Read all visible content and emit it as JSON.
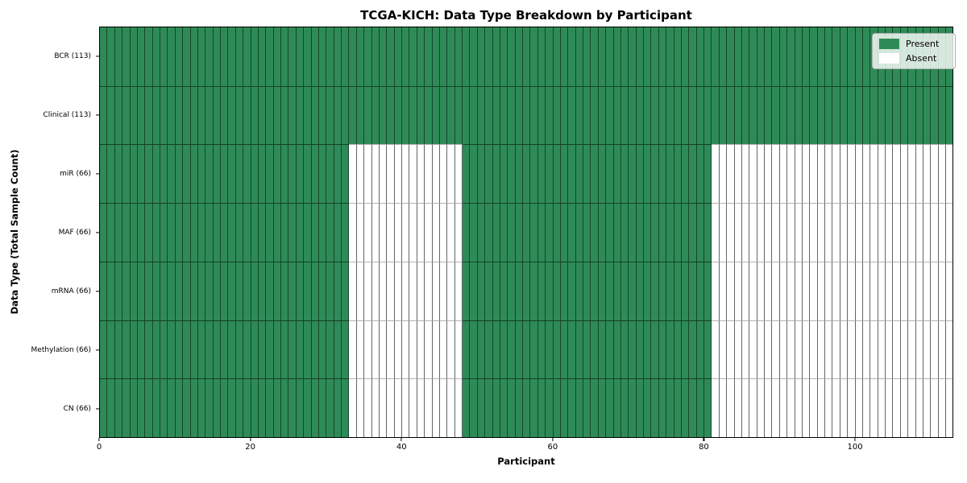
{
  "chart_data": {
    "type": "heatmap",
    "title": "TCGA-KICH: Data Type Breakdown by Participant",
    "xlabel": "Participant",
    "ylabel": "Data Type (Total Sample Count)",
    "n_participants": 113,
    "xlim": [
      0,
      113
    ],
    "x_ticks": [
      0,
      20,
      40,
      60,
      80,
      100
    ],
    "colors": {
      "present": "#2e8b57",
      "absent": "#ffffff"
    },
    "legend": {
      "position": "upper right",
      "entries": [
        {
          "label": "Present",
          "color": "#2e8b57"
        },
        {
          "label": "Absent",
          "color": "#ffffff"
        }
      ]
    },
    "rows": [
      {
        "label": "BCR (113)",
        "total": 113,
        "present_ranges": [
          [
            0,
            113
          ]
        ]
      },
      {
        "label": "Clinical (113)",
        "total": 113,
        "present_ranges": [
          [
            0,
            113
          ]
        ]
      },
      {
        "label": "miR (66)",
        "total": 66,
        "present_ranges": [
          [
            0,
            33
          ],
          [
            48,
            81
          ]
        ]
      },
      {
        "label": "MAF (66)",
        "total": 66,
        "present_ranges": [
          [
            0,
            33
          ],
          [
            48,
            81
          ]
        ]
      },
      {
        "label": "mRNA (66)",
        "total": 66,
        "present_ranges": [
          [
            0,
            33
          ],
          [
            48,
            81
          ]
        ]
      },
      {
        "label": "Methylation (66)",
        "total": 66,
        "present_ranges": [
          [
            0,
            33
          ],
          [
            48,
            81
          ]
        ]
      },
      {
        "label": "CN (66)",
        "total": 66,
        "present_ranges": [
          [
            0,
            33
          ],
          [
            48,
            81
          ]
        ]
      }
    ]
  }
}
